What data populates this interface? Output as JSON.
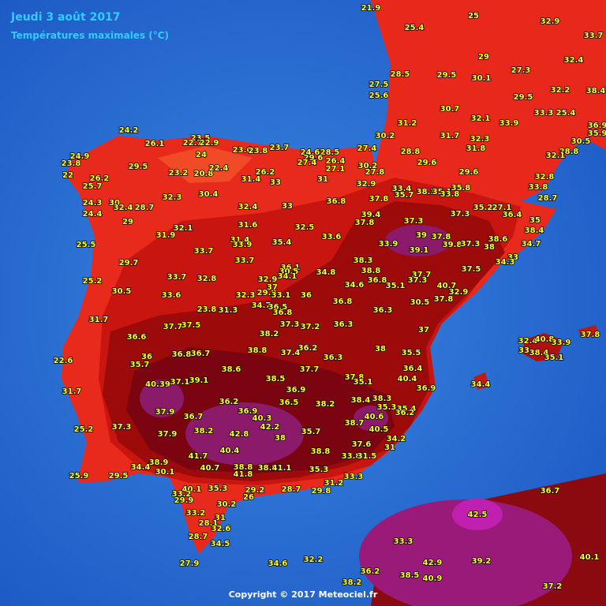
{
  "header": {
    "title": "Jeudi 3 août 2017",
    "subtitle": "Températures maximales (°C)"
  },
  "footer": "Copyright © 2017 Meteociel.fr",
  "stations": [
    "21.9",
    "25.4",
    "25",
    "32.9",
    "33.7",
    "29",
    "27.3",
    "32.4",
    "28.5",
    "29.5",
    "30.1",
    "27.5",
    "25.6",
    "32.2",
    "38.4",
    "29.5",
    "30.7",
    "32.1",
    "33.3",
    "25.4",
    "33.9",
    "31.2",
    "36.9",
    "35.9",
    "30.2",
    "31.7",
    "32.3",
    "30.5",
    "31.8",
    "28.8",
    "32.1",
    "24.2",
    "23.5",
    "26.1",
    "22.7",
    "22.9",
    "24",
    "23.6",
    "23.8",
    "23.7",
    "24.6",
    "28.5",
    "27.4",
    "28.8",
    "29.6",
    "23.8",
    "24.9",
    "29.5",
    "23.2",
    "20.8",
    "22.4",
    "27.4",
    "26.4",
    "27.1",
    "30.2",
    "29.6",
    "22",
    "26.2",
    "26.2",
    "31.4",
    "33",
    "31",
    "27.8",
    "29.6",
    "32.8",
    "25.7",
    "32.9",
    "33.8",
    "35.8",
    "32.3",
    "30.4",
    "33.4",
    "38.3",
    "35.1",
    "33.8",
    "24.3",
    "30",
    "32.4",
    "28.7",
    "32.4",
    "33",
    "36.8",
    "37.8",
    "35.7",
    "35.2",
    "27.1",
    "28.7",
    "24.4",
    "29",
    "31.6",
    "32.5",
    "39.4",
    "37.3",
    "37.3",
    "36.4",
    "35",
    "37.8",
    "32.1",
    "31.9",
    "31.4",
    "35.4",
    "33.6",
    "38.4",
    "25.5",
    "33.9",
    "33.9",
    "39",
    "37.8",
    "39.8",
    "37.3",
    "38.6",
    "38",
    "39.1",
    "34.7",
    "33",
    "33.7",
    "29.7",
    "33.7",
    "38.3",
    "34.3",
    "36.1",
    "30.5",
    "38.8",
    "37.5",
    "34.8",
    "33.7",
    "32.8",
    "32.9",
    "34.1",
    "36.8",
    "37.7",
    "37.3",
    "25.2",
    "34.6",
    "35.1",
    "40.7",
    "30.5",
    "33.6",
    "32.3",
    "29.8",
    "37",
    "33.1",
    "36",
    "32.9",
    "37.8",
    "36.8",
    "30.5",
    "34.7",
    "36.5",
    "23.8",
    "31.3",
    "36.8",
    "36.3",
    "31.7",
    "37.7",
    "37.5",
    "37.3",
    "37.2",
    "36.3",
    "37",
    "36.6",
    "38.2",
    "32.4",
    "40.8",
    "33.9",
    "37.8",
    "36.2",
    "36.3",
    "38",
    "35.5",
    "33",
    "38.4",
    "35.1",
    "22.6",
    "36",
    "36.8",
    "36.7",
    "38.8",
    "37.4",
    "35.7",
    "38.6",
    "37.7",
    "36.4",
    "40.4",
    "38.5",
    "37.8",
    "35.1",
    "34.4",
    "40.39",
    "37.1",
    "39.1",
    "36.9",
    "36.9",
    "31.7",
    "38.4",
    "38.3",
    "36.2",
    "36.5",
    "38.2",
    "35.3",
    "35.4",
    "37.9",
    "36.9",
    "40.3",
    "36.7",
    "40.6",
    "36.2",
    "38.7",
    "42.2",
    "40.5",
    "25.2",
    "37.3",
    "38.2",
    "42.8",
    "38",
    "35.7",
    "37.9",
    "34.2",
    "37.6",
    "31",
    "40.4",
    "38.8",
    "41.7",
    "33.8",
    "31.5",
    "38.9",
    "34.4",
    "40.7",
    "38.8",
    "38.9",
    "41.1",
    "35.3",
    "30.1",
    "41.8",
    "33.3",
    "25.9",
    "29.5",
    "31.2",
    "40.1",
    "35.3",
    "29.2",
    "28.7",
    "29.8",
    "36.7",
    "33.2",
    "26",
    "29.9",
    "30.2",
    "42.5",
    "33.2",
    "31",
    "28.1",
    "32.6",
    "28.7",
    "34.5",
    "33.3",
    "40.1",
    "32.2",
    "42.9",
    "39.2",
    "27.9",
    "34.6",
    "36.2",
    "38.5",
    "40.9",
    "38.2",
    "37.2"
  ]
}
